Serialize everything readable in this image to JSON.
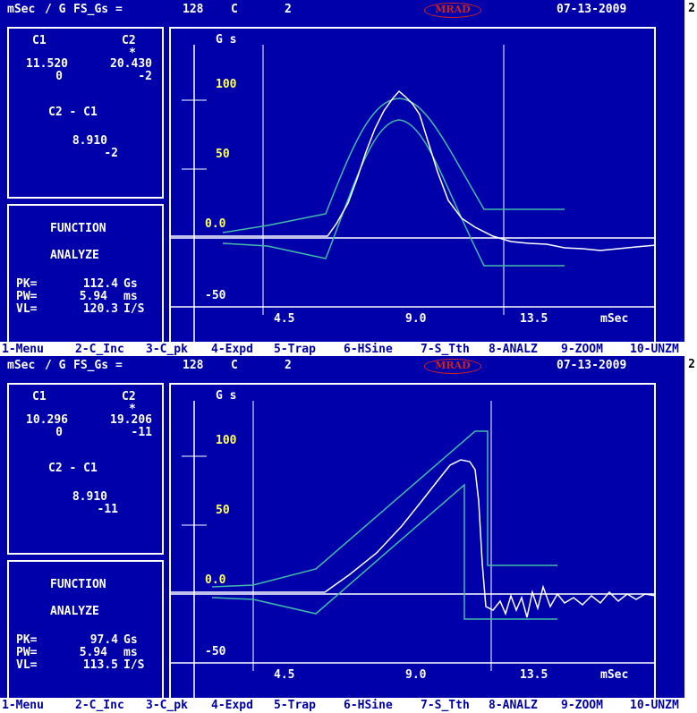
{
  "header": {
    "unit": "mSec",
    "per_g": "/ G",
    "fs_label": "FS_Gs =",
    "fs_value": "128",
    "mode": "C",
    "channel": "2",
    "logo": "MRAD",
    "date": "07-13-2009"
  },
  "page_number": "2",
  "function_keys": [
    "1-Menu",
    "2-C_Inc",
    "3-C_pk",
    "4-Expd",
    "5-Trap",
    "6-HSine",
    "7-S_Tth",
    "8-ANALZ",
    "9-ZOOM",
    "10-UNZM"
  ],
  "graph_labels": {
    "y_unit": "G s",
    "y_ticks": [
      "100",
      "50",
      "0.0",
      "-50"
    ],
    "x_ticks": [
      "4.5",
      "9.0",
      "13.5"
    ],
    "x_unit": "mSec"
  },
  "panels": [
    {
      "c1_label": "C1",
      "c2_label": "C2",
      "marker": "*",
      "c1_value": "11.520",
      "c2_value": "20.430",
      "c1_sub": "0",
      "c2_sub": "-2",
      "diff_label": "C2 - C1",
      "diff_value": "8.910",
      "diff_sub": "-2",
      "function_label": "FUNCTION",
      "analyze_label": "ANALYZE",
      "pk_label": "PK=",
      "pk_value": "112.4",
      "pk_unit": "Gs",
      "pw_label": "PW=",
      "pw_value": "5.94",
      "pw_unit": "ms",
      "vl_label": "VL=",
      "vl_value": "120.3",
      "vl_unit": "I/S",
      "waveform": "half-sine"
    },
    {
      "c1_label": "C1",
      "c2_label": "C2",
      "marker": "*",
      "c1_value": "10.296",
      "c2_value": "19.206",
      "c1_sub": "0",
      "c2_sub": "-11",
      "diff_label": "C2 - C1",
      "diff_value": "8.910",
      "diff_sub": "-11",
      "function_label": "FUNCTION",
      "analyze_label": "ANALYZE",
      "pk_label": "PK=",
      "pk_value": "97.4",
      "pk_unit": "Gs",
      "pw_label": "PW=",
      "pw_value": "5.94",
      "pw_unit": "ms",
      "vl_label": "VL=",
      "vl_value": "113.5",
      "vl_unit": "I/S",
      "waveform": "sawtooth"
    }
  ],
  "colors": {
    "background": "#0000aa",
    "text": "#ffffff",
    "tolerance": "#44bbaa",
    "trace": "#ffffff",
    "highlight": "#ffff66",
    "logo": "#cc2222"
  }
}
